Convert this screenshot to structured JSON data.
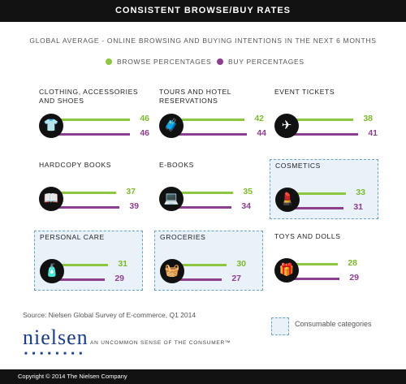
{
  "header": {
    "title": "CONSISTENT BROWSE/BUY RATES"
  },
  "subtitle": "GLOBAL AVERAGE - ONLINE BROWSING AND BUYING INTENTIONS IN THE NEXT 6 MONTHS",
  "legend": {
    "browse_label": "BROWSE PERCENTAGES",
    "buy_label": "BUY PERCENTAGES"
  },
  "colors": {
    "browse": "#8dc63f",
    "buy": "#8c3f8f",
    "consumable_bg": "#e9f2f9"
  },
  "chart_data": {
    "type": "bar",
    "series": [
      {
        "name": "BROWSE PERCENTAGES",
        "values": [
          46,
          42,
          38,
          37,
          35,
          33,
          31,
          30,
          28
        ]
      },
      {
        "name": "BUY PERCENTAGES",
        "values": [
          46,
          44,
          41,
          39,
          34,
          31,
          29,
          27,
          29
        ]
      }
    ],
    "categories": [
      {
        "label": "CLOTHING, ACCESSORIES AND SHOES",
        "browse": 46,
        "buy": 46,
        "icon": "tshirt-icon",
        "consumable": false
      },
      {
        "label": "TOURS AND HOTEL RESERVATIONS",
        "browse": 42,
        "buy": 44,
        "icon": "luggage-icon",
        "consumable": false
      },
      {
        "label": "EVENT TICKETS",
        "browse": 38,
        "buy": 41,
        "icon": "ticket-icon",
        "consumable": false
      },
      {
        "label": "HARDCOPY BOOKS",
        "browse": 37,
        "buy": 39,
        "icon": "book-icon",
        "consumable": false
      },
      {
        "label": "E-BOOKS",
        "browse": 35,
        "buy": 34,
        "icon": "laptop-icon",
        "consumable": false
      },
      {
        "label": "COSMETICS",
        "browse": 33,
        "buy": 31,
        "icon": "lipstick-icon",
        "consumable": true
      },
      {
        "label": "PERSONAL CARE",
        "browse": 31,
        "buy": 29,
        "icon": "lotion-bottle-icon",
        "consumable": true
      },
      {
        "label": "GROCERIES",
        "browse": 30,
        "buy": 27,
        "icon": "basket-icon",
        "consumable": true
      },
      {
        "label": "TOYS AND DOLLS",
        "browse": 28,
        "buy": 29,
        "icon": "gift-icon",
        "consumable": false
      }
    ]
  },
  "source": "Source: Nielsen Global Survey of E-commerce, Q1 2014",
  "consumable_key_label": "Consumable categories",
  "brand": {
    "logo": "nielsen",
    "tagline": "AN UNCOMMON SENSE OF THE CONSUMER™"
  },
  "footer": "Copyright © 2014 The Nielsen Company"
}
